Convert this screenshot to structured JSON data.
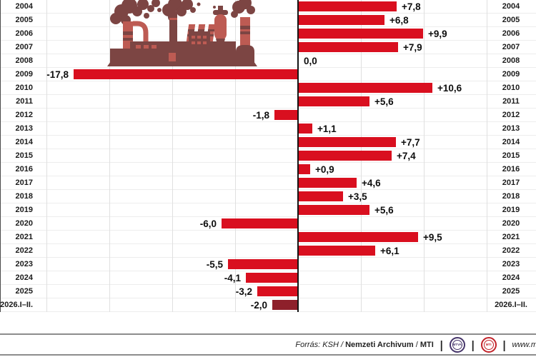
{
  "chart_data": {
    "type": "bar",
    "orientation": "horizontal",
    "categories": [
      "2004",
      "2005",
      "2006",
      "2007",
      "2008",
      "2009",
      "2010",
      "2011",
      "2012",
      "2013",
      "2014",
      "2015",
      "2016",
      "2017",
      "2018",
      "2019",
      "2020",
      "2021",
      "2022",
      "2023",
      "2024",
      "2025",
      "2026.I–II."
    ],
    "values": [
      7.8,
      6.8,
      9.9,
      7.9,
      0.0,
      -17.8,
      10.6,
      5.6,
      -1.8,
      1.1,
      7.7,
      7.4,
      0.9,
      4.6,
      3.5,
      5.6,
      -6.0,
      9.5,
      6.1,
      -5.5,
      -4.1,
      -3.2,
      -2.0
    ],
    "value_labels": [
      "+7,8",
      "+6,8",
      "+9,9",
      "+7,9",
      "0,0",
      "-17,8",
      "+10,6",
      "+5,6",
      "-1,8",
      "+1,1",
      "+7,7",
      "+7,4",
      "+0,9",
      "+4,6",
      "+3,5",
      "+5,6",
      "-6,0",
      "+9,5",
      "+6,1",
      "-5,5",
      "-4,1",
      "-3,2",
      "-2,0"
    ],
    "xlim": [
      -23.7,
      18.9
    ],
    "gridline_step": 5,
    "grid_on": true,
    "bar_color": "#d90f1f",
    "last_bar_color": "#8e202b",
    "axis_color": "#151515"
  },
  "illustration": {
    "name": "factory-illustration",
    "color_dark": "#7c4543",
    "color_light": "#bd5b53"
  },
  "footer": {
    "source_italic": "Forrás: KSH /",
    "source_bold": "Nemzeti Archivum",
    "source_slash": "/",
    "source_mti": "MTI",
    "divider": "|",
    "mtva_logo_label": "MTVA",
    "mti_logo_label": "MTI",
    "website": "www.m"
  }
}
